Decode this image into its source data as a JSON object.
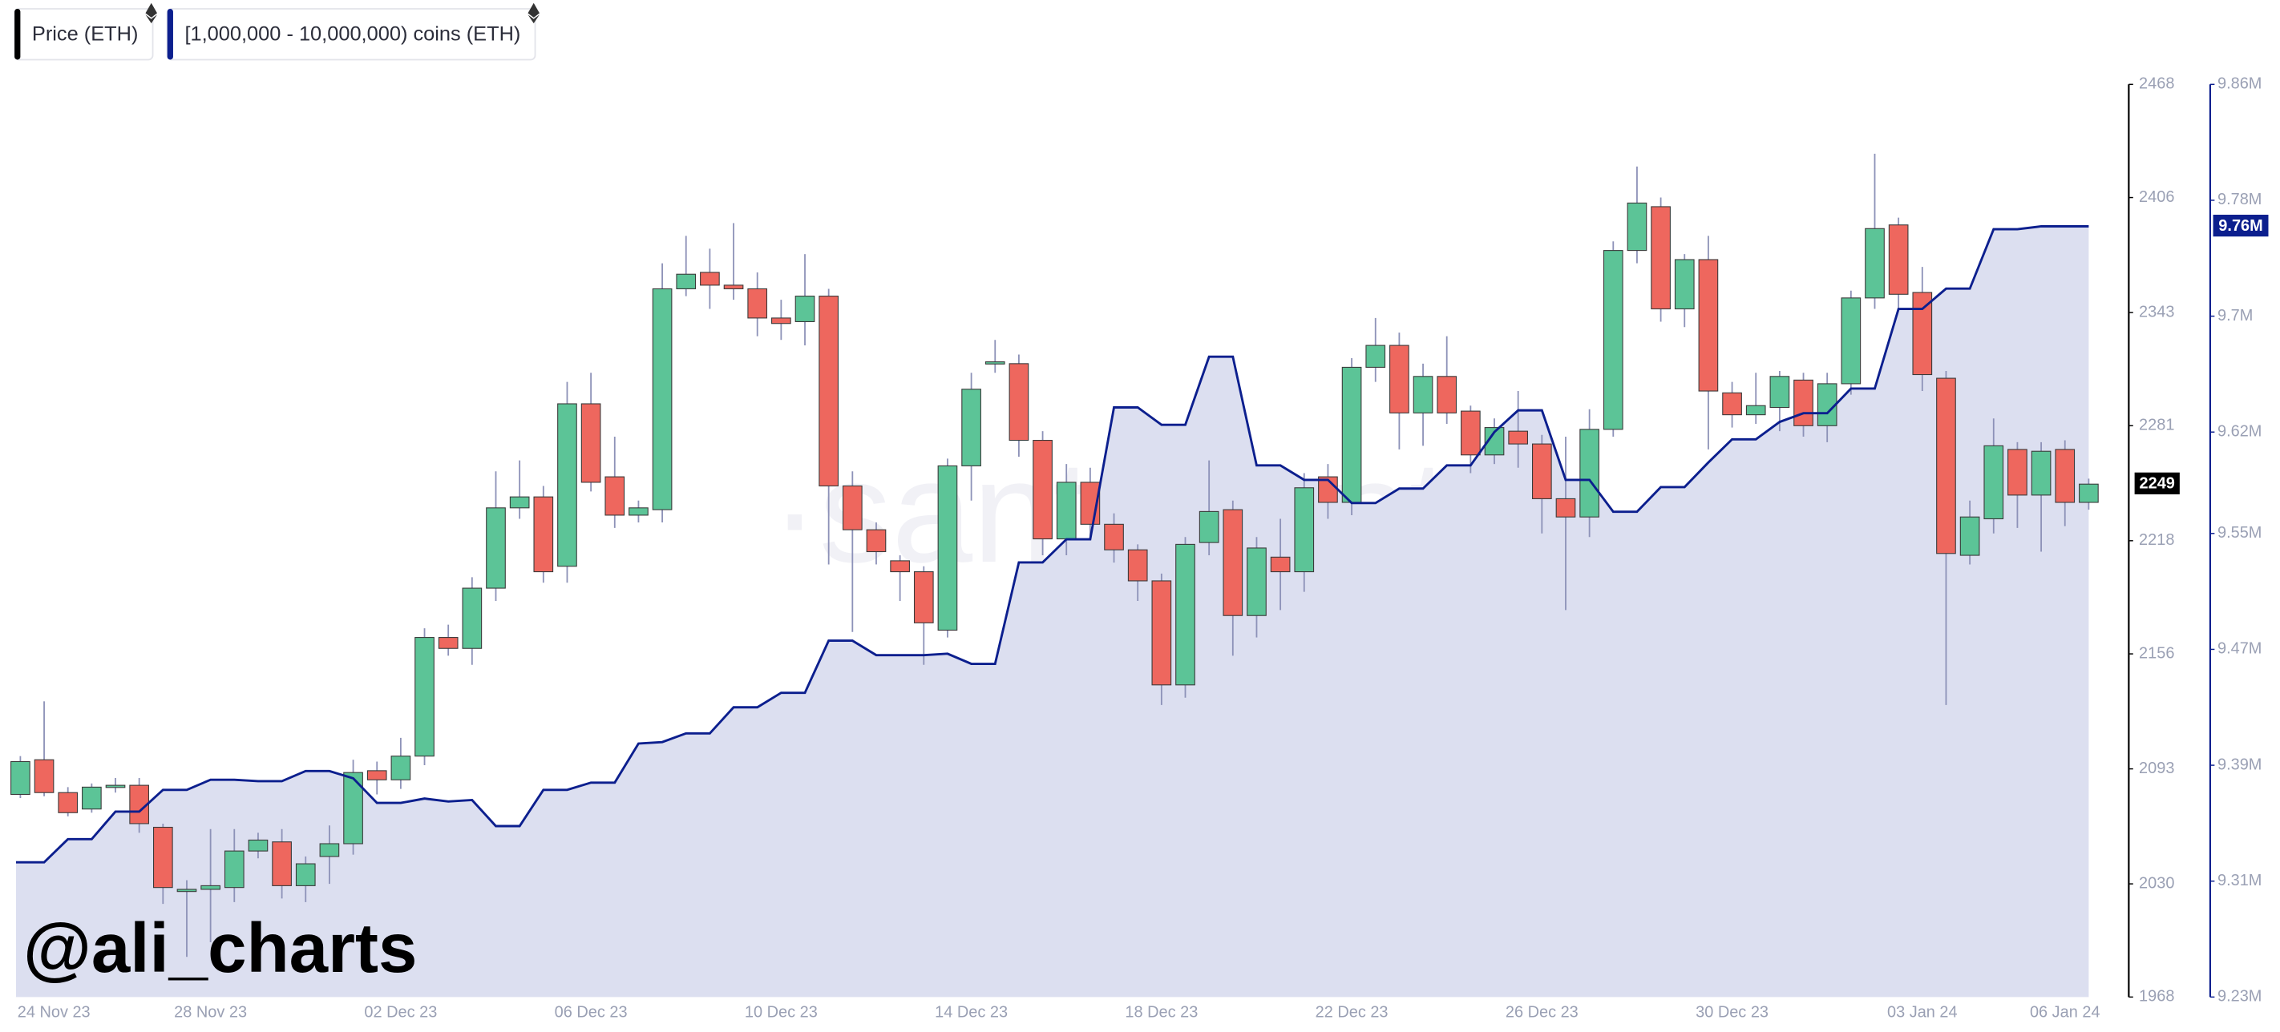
{
  "chart_data": {
    "type": "candlestick",
    "watermarks": [
      "·santiment·",
      "@ali_charts"
    ],
    "categories": [
      "24 Nov 23",
      null,
      null,
      null,
      null,
      null,
      null,
      null,
      "28 Nov 23",
      null,
      null,
      null,
      null,
      null,
      null,
      null,
      "02 Dec 23",
      null,
      null,
      null,
      null,
      null,
      null,
      null,
      "06 Dec 23",
      null,
      null,
      null,
      null,
      null,
      null,
      null,
      "10 Dec 23",
      null,
      null,
      null,
      null,
      null,
      null,
      null,
      "14 Dec 23",
      null,
      null,
      null,
      null,
      null,
      null,
      null,
      "18 Dec 23",
      null,
      null,
      null,
      null,
      null,
      null,
      null,
      "22 Dec 23",
      null,
      null,
      null,
      null,
      null,
      null,
      null,
      "26 Dec 23",
      null,
      null,
      null,
      null,
      null,
      null,
      null,
      "30 Dec 23",
      null,
      null,
      null,
      null,
      null,
      null,
      null,
      "03 Jan 24",
      null,
      null,
      null,
      null,
      null,
      "06 Jan 24",
      null
    ],
    "series": [
      {
        "name": "Price (ETH)",
        "type": "candlestick",
        "color": "#000000",
        "up_color": "#5cc497",
        "down_color": "#ee675e",
        "current_label": "2249",
        "open": [
          2079,
          2098,
          2080,
          2071,
          2083,
          2084,
          2061,
          2026,
          2027,
          2028,
          2048,
          2053,
          2029,
          2045,
          2052,
          2092,
          2087,
          2100,
          2165,
          2159,
          2192,
          2236,
          2242,
          2204,
          2293,
          2253,
          2232,
          2235,
          2356,
          2365,
          2358,
          2356,
          2340,
          2338,
          2352,
          2248,
          2224,
          2207,
          2201,
          2169,
          2259,
          2315,
          2315,
          2273,
          2219,
          2250,
          2227,
          2213,
          2196,
          2139,
          2217,
          2235,
          2177,
          2209,
          2201,
          2253,
          2239,
          2313,
          2325,
          2288,
          2308,
          2289,
          2265,
          2278,
          2271,
          2241,
          2231,
          2279,
          2377,
          2401,
          2345,
          2372,
          2299,
          2287,
          2291,
          2306,
          2281,
          2304,
          2351,
          2391,
          2354,
          2307,
          2210,
          2230,
          2268,
          2243,
          2268,
          2239
        ],
        "high": [
          2100,
          2130,
          2083,
          2085,
          2088,
          2088,
          2063,
          2032,
          2060,
          2060,
          2058,
          2060,
          2045,
          2062,
          2098,
          2097,
          2110,
          2170,
          2172,
          2198,
          2256,
          2262,
          2248,
          2305,
          2310,
          2275,
          2240,
          2370,
          2385,
          2378,
          2392,
          2365,
          2350,
          2375,
          2356,
          2256,
          2228,
          2210,
          2204,
          2263,
          2310,
          2328,
          2320,
          2278,
          2260,
          2258,
          2233,
          2216,
          2200,
          2220,
          2262,
          2240,
          2220,
          2230,
          2255,
          2260,
          2318,
          2340,
          2332,
          2315,
          2330,
          2292,
          2285,
          2300,
          2276,
          2275,
          2290,
          2382,
          2423,
          2406,
          2375,
          2385,
          2305,
          2310,
          2311,
          2310,
          2310,
          2355,
          2430,
          2395,
          2368,
          2311,
          2240,
          2285,
          2272,
          2272,
          2273,
          2252
        ],
        "low": [
          2077,
          2078,
          2067,
          2069,
          2080,
          2058,
          2019,
          1990,
          1998,
          2020,
          2044,
          2022,
          2020,
          2030,
          2046,
          2079,
          2082,
          2095,
          2155,
          2150,
          2185,
          2230,
          2195,
          2195,
          2245,
          2225,
          2228,
          2228,
          2352,
          2345,
          2350,
          2330,
          2328,
          2325,
          2205,
          2168,
          2205,
          2185,
          2150,
          2165,
          2240,
          2310,
          2264,
          2210,
          2210,
          2220,
          2206,
          2185,
          2128,
          2132,
          2210,
          2155,
          2165,
          2180,
          2190,
          2230,
          2232,
          2305,
          2268,
          2270,
          2282,
          2255,
          2260,
          2258,
          2222,
          2180,
          2220,
          2275,
          2370,
          2338,
          2335,
          2268,
          2280,
          2282,
          2278,
          2275,
          2272,
          2298,
          2345,
          2345,
          2300,
          2128,
          2205,
          2222,
          2225,
          2212,
          2226,
          2235
        ],
        "close": [
          2097,
          2080,
          2069,
          2083,
          2084,
          2063,
          2028,
          2027,
          2029,
          2048,
          2054,
          2029,
          2041,
          2052,
          2091,
          2087,
          2100,
          2165,
          2159,
          2192,
          2236,
          2242,
          2201,
          2293,
          2250,
          2232,
          2236,
          2356,
          2364,
          2358,
          2356,
          2340,
          2337,
          2352,
          2248,
          2224,
          2212,
          2201,
          2173,
          2259,
          2301,
          2316,
          2273,
          2219,
          2250,
          2227,
          2213,
          2196,
          2139,
          2216,
          2234,
          2177,
          2214,
          2201,
          2247,
          2239,
          2313,
          2325,
          2288,
          2308,
          2288,
          2265,
          2280,
          2271,
          2241,
          2231,
          2279,
          2377,
          2403,
          2345,
          2372,
          2300,
          2287,
          2292,
          2308,
          2281,
          2304,
          2351,
          2389,
          2353,
          2309,
          2211,
          2231,
          2270,
          2243,
          2267,
          2239,
          2249
        ]
      },
      {
        "name": "[1,000,000 - 10,000,000) coins (ETH)",
        "type": "area",
        "axis": "y2",
        "color": "#0c1f8e",
        "fill": "#dcdff0",
        "current_label": "9.76M",
        "values": [
          9323000,
          9323000,
          9339000,
          9339000,
          9358000,
          9358000,
          9373000,
          9373000,
          9380000,
          9380000,
          9379000,
          9379000,
          9386000,
          9386000,
          9381000,
          9364000,
          9364000,
          9367000,
          9365000,
          9366000,
          9348000,
          9348000,
          9373000,
          9373000,
          9378000,
          9378000,
          9405000,
          9406000,
          9412000,
          9412000,
          9430000,
          9430000,
          9440000,
          9440000,
          9476000,
          9476000,
          9466000,
          9466000,
          9466000,
          9467000,
          9460000,
          9460000,
          9530000,
          9530000,
          9546000,
          9546000,
          9637000,
          9637000,
          9625000,
          9625000,
          9672000,
          9672000,
          9597000,
          9597000,
          9587000,
          9587000,
          9571000,
          9571000,
          9581000,
          9581000,
          9597000,
          9597000,
          9620000,
          9635000,
          9635000,
          9587000,
          9587000,
          9565000,
          9565000,
          9582000,
          9582000,
          9599000,
          9615000,
          9615000,
          9627000,
          9633000,
          9633000,
          9650000,
          9650000,
          9705000,
          9705000,
          9719000,
          9719000,
          9760000,
          9760000,
          9762000,
          9762000,
          9762000
        ]
      }
    ],
    "ylim": [
      1968,
      2468
    ],
    "yticks": [
      1968,
      2030,
      2093,
      2156,
      2218,
      2281,
      2343,
      2406,
      2468
    ],
    "y2lim": [
      9230000,
      9860000
    ],
    "y2ticks": [
      {
        "value": 9230000,
        "label": "9.23M"
      },
      {
        "value": 9310000,
        "label": "9.31M"
      },
      {
        "value": 9390000,
        "label": "9.39M"
      },
      {
        "value": 9470000,
        "label": "9.47M"
      },
      {
        "value": 9550000,
        "label": "9.55M"
      },
      {
        "value": 9620000,
        "label": "9.62M"
      },
      {
        "value": 9700000,
        "label": "9.7M"
      },
      {
        "value": 9780000,
        "label": "9.78M"
      },
      {
        "value": 9860000,
        "label": "9.86M"
      }
    ]
  }
}
